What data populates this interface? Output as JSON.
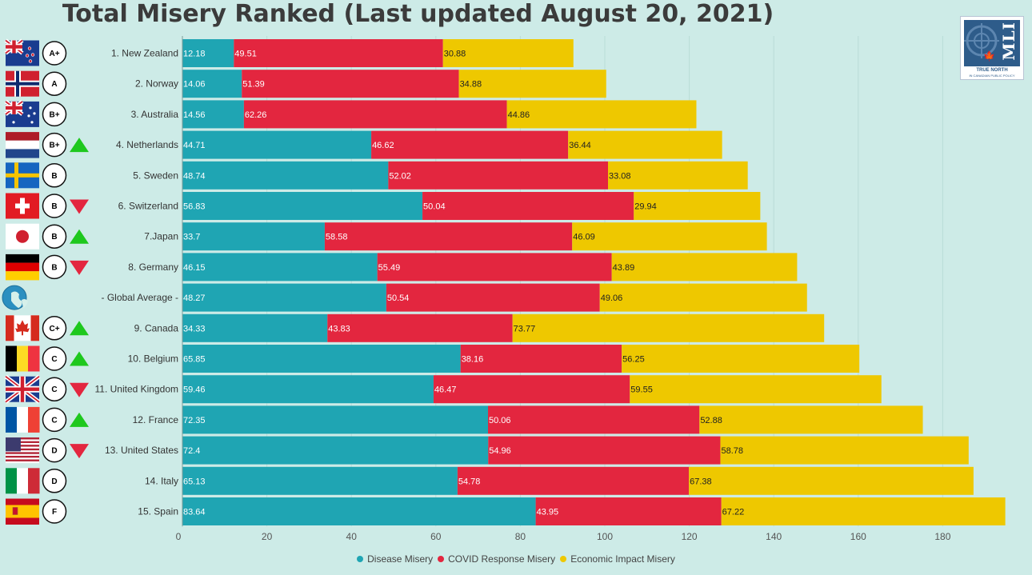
{
  "title": "Total Misery Ranked (Last updated August 20, 2021)",
  "logo": {
    "mark": "MLI",
    "tagline_1": "TRUE NORTH",
    "tagline_2": "IN CANADIAN PUBLIC POLICY"
  },
  "colors": {
    "disease": "#1fa5b3",
    "covid": "#e3263f",
    "economic": "#eec800",
    "up_arrow": "#1ec81e",
    "down_arrow": "#e3263f",
    "background": "#cdebe7"
  },
  "chart_data": {
    "type": "bar",
    "orientation": "horizontal",
    "stacked": true,
    "categories": [
      "1. New Zealand",
      "2. Norway",
      "3. Australia",
      "4. Netherlands",
      "5. Sweden",
      "6. Switzerland",
      "7.Japan",
      "8. Germany",
      "- Global Average -",
      "9. Canada",
      "10. Belgium",
      "11. United Kingdom",
      "12. France",
      "13. United States",
      "14. Italy",
      "15. Spain"
    ],
    "series": [
      {
        "name": "Disease Misery",
        "values": [
          12.18,
          14.06,
          14.56,
          44.71,
          48.74,
          56.83,
          33.7,
          46.15,
          48.27,
          34.33,
          65.85,
          59.46,
          72.35,
          72.4,
          65.13,
          83.64
        ]
      },
      {
        "name": "COVID Response Misery",
        "values": [
          49.51,
          51.39,
          62.26,
          46.62,
          52.02,
          50.04,
          58.58,
          55.49,
          50.54,
          43.83,
          38.16,
          46.47,
          50.06,
          54.96,
          54.78,
          43.95
        ]
      },
      {
        "name": "Economic Impact Misery",
        "values": [
          30.88,
          34.88,
          44.86,
          36.44,
          33.08,
          29.94,
          46.09,
          43.89,
          49.06,
          73.77,
          56.25,
          59.55,
          52.88,
          58.78,
          67.38,
          67.22
        ]
      }
    ],
    "xlim": [
      0,
      195
    ],
    "xticks": [
      0,
      20,
      40,
      60,
      80,
      100,
      120,
      140,
      160,
      180
    ],
    "legend_position": "bottom-center",
    "grid": true
  },
  "rows": [
    {
      "flag": "new-zealand",
      "grade": "A+",
      "trend": "none"
    },
    {
      "flag": "norway",
      "grade": "A",
      "trend": "none"
    },
    {
      "flag": "australia",
      "grade": "B+",
      "trend": "none"
    },
    {
      "flag": "netherlands",
      "grade": "B+",
      "trend": "up"
    },
    {
      "flag": "sweden",
      "grade": "B",
      "trend": "none"
    },
    {
      "flag": "switzerland",
      "grade": "B",
      "trend": "down"
    },
    {
      "flag": "japan",
      "grade": "B",
      "trend": "up"
    },
    {
      "flag": "germany",
      "grade": "B",
      "trend": "down"
    },
    {
      "flag": "globe",
      "grade": "",
      "trend": "none"
    },
    {
      "flag": "canada",
      "grade": "C+",
      "trend": "up"
    },
    {
      "flag": "belgium",
      "grade": "C",
      "trend": "up"
    },
    {
      "flag": "united-kingdom",
      "grade": "C",
      "trend": "down"
    },
    {
      "flag": "france",
      "grade": "C",
      "trend": "up"
    },
    {
      "flag": "united-states",
      "grade": "D",
      "trend": "down"
    },
    {
      "flag": "italy",
      "grade": "D",
      "trend": "none"
    },
    {
      "flag": "spain",
      "grade": "F",
      "trend": "none"
    }
  ]
}
